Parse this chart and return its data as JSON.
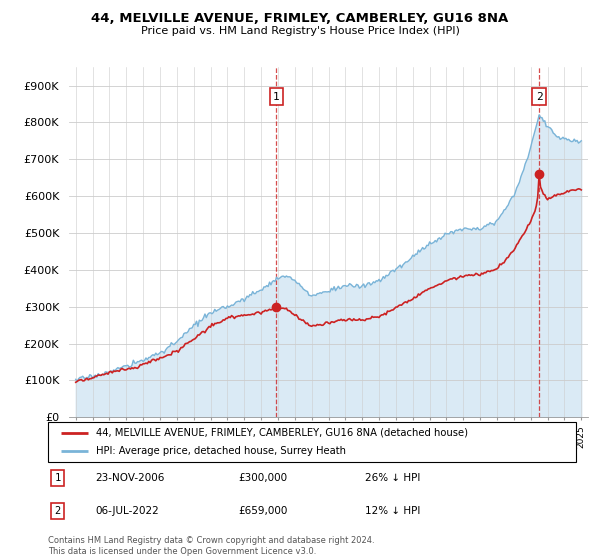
{
  "title": "44, MELVILLE AVENUE, FRIMLEY, CAMBERLEY, GU16 8NA",
  "subtitle": "Price paid vs. HM Land Registry's House Price Index (HPI)",
  "yticks": [
    0,
    100000,
    200000,
    300000,
    400000,
    500000,
    600000,
    700000,
    800000,
    900000
  ],
  "ytick_labels": [
    "£0",
    "£100K",
    "£200K",
    "£300K",
    "£400K",
    "£500K",
    "£600K",
    "£700K",
    "£800K",
    "£900K"
  ],
  "hpi_color": "#7ab4d8",
  "hpi_fill_color": "#daeaf5",
  "price_color": "#cc2222",
  "sale1_date": "23-NOV-2006",
  "sale1_price": 300000,
  "sale1_year": 2006.9,
  "sale2_date": "06-JUL-2022",
  "sale2_price": 659000,
  "sale2_year": 2022.5,
  "legend_line1": "44, MELVILLE AVENUE, FRIMLEY, CAMBERLEY, GU16 8NA (detached house)",
  "legend_line2": "HPI: Average price, detached house, Surrey Heath",
  "sale1_pct": "26% ↓ HPI",
  "sale2_pct": "12% ↓ HPI",
  "footnote": "Contains HM Land Registry data © Crown copyright and database right 2024.\nThis data is licensed under the Open Government Licence v3.0.",
  "background_color": "#ffffff",
  "grid_color": "#cccccc"
}
